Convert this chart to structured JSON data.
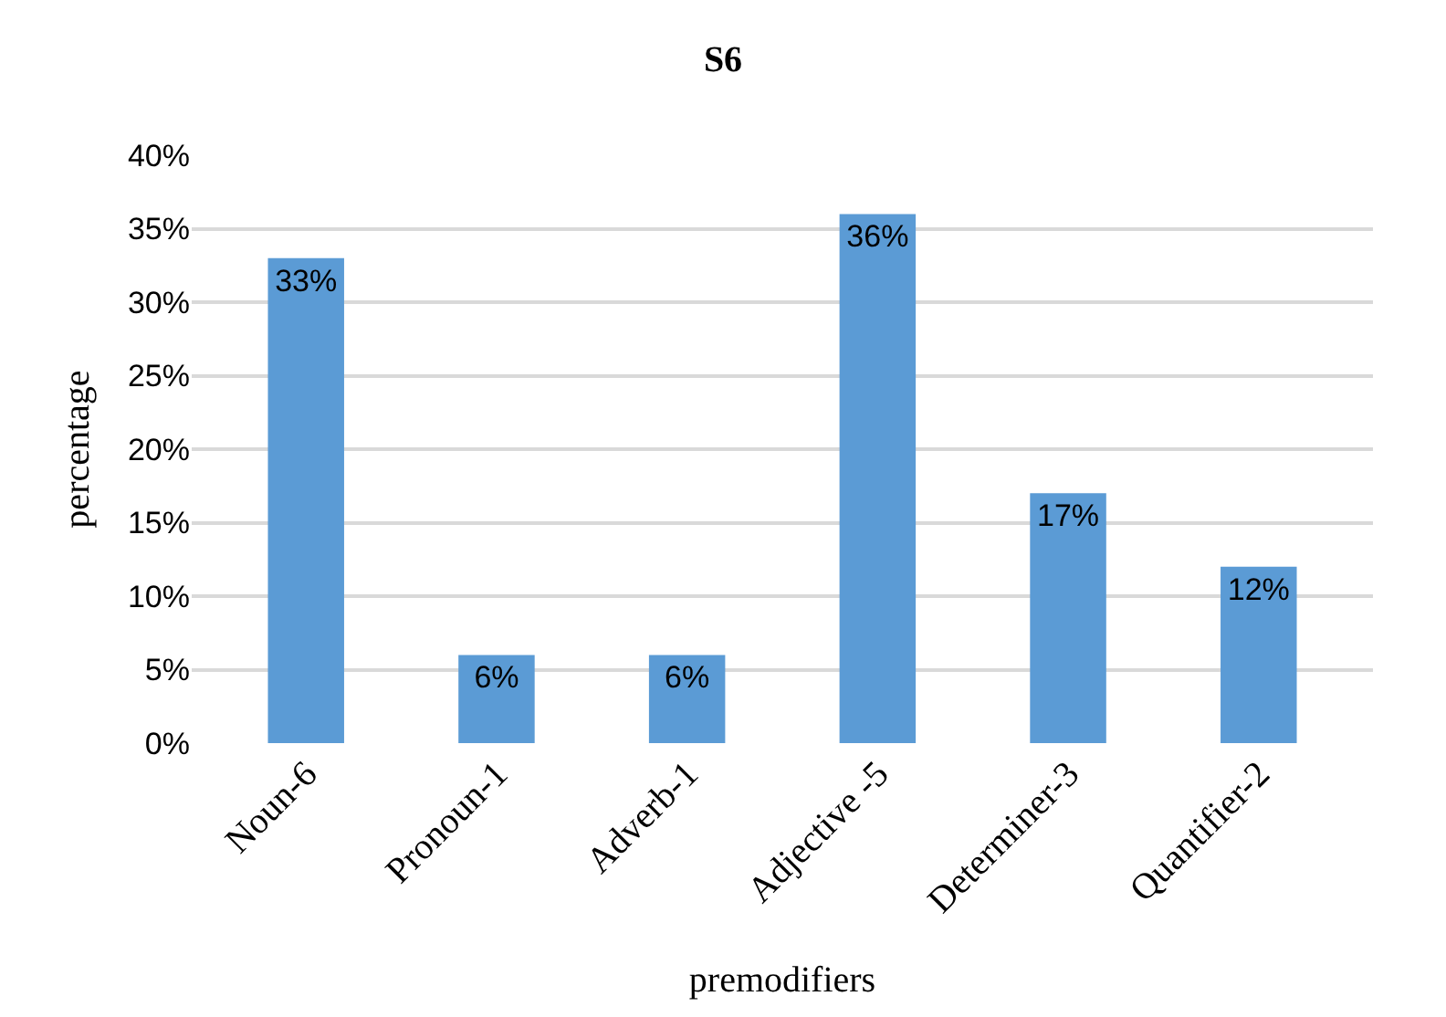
{
  "chart_data": {
    "type": "bar",
    "title": "S6",
    "xlabel": "premodifiers",
    "ylabel": "percentage",
    "categories": [
      "Noun-6",
      "Pronoun-1",
      "Adverb-1",
      "Adjective -5",
      "Determiner-3",
      "Quantifier-2"
    ],
    "values": [
      33,
      6,
      6,
      36,
      17,
      12
    ],
    "value_labels": [
      "33%",
      "6%",
      "6%",
      "36%",
      "17%",
      "12%"
    ],
    "color": "#5b9bd5",
    "ylim": [
      0,
      40
    ],
    "yticks": [
      {
        "value": 0,
        "label": "0%"
      },
      {
        "value": 5,
        "label": "5%"
      },
      {
        "value": 10,
        "label": "10%"
      },
      {
        "value": 15,
        "label": "15%"
      },
      {
        "value": 20,
        "label": "20%"
      },
      {
        "value": 25,
        "label": "25%"
      },
      {
        "value": 30,
        "label": "30%"
      },
      {
        "value": 35,
        "label": "35%"
      },
      {
        "value": 40,
        "label": "40%"
      }
    ],
    "grid": "y"
  }
}
